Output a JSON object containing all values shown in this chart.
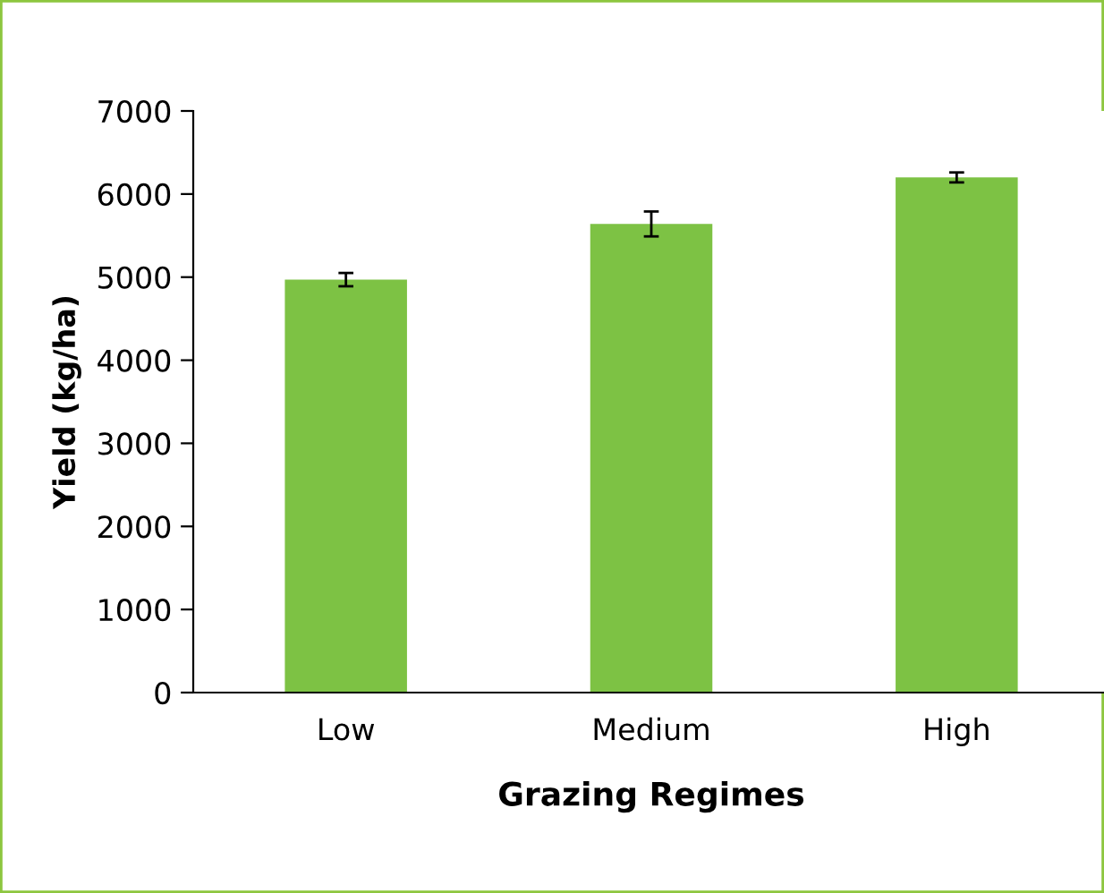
{
  "chart_data": {
    "type": "bar",
    "xlabel": "Grazing Regimes",
    "ylabel": "Yield (kg/ha)",
    "categories": [
      "Low",
      "Medium",
      "High"
    ],
    "values": [
      4970,
      5640,
      6200
    ],
    "errors": [
      80,
      150,
      60
    ],
    "color": "#7dc244",
    "ylim": [
      0,
      7000
    ],
    "yticks": [
      0,
      1000,
      2000,
      3000,
      4000,
      5000,
      6000,
      7000
    ],
    "grid": false,
    "legend": false
  }
}
